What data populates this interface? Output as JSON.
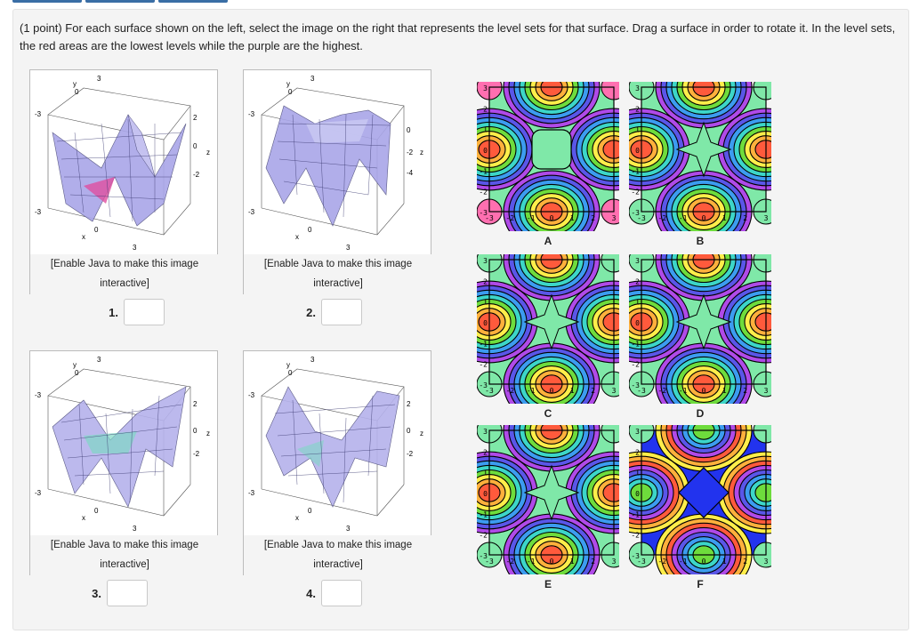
{
  "question": {
    "text": "(1 point) For each surface shown on the left, select the image on the right that represents the level sets for that surface. Drag a surface in order to rotate it. In the level sets, the red areas are the lowest levels while the purple are the highest."
  },
  "surfaces": [
    {
      "caption_line1": "[Enable Java to make this image",
      "caption_line2": "interactive]",
      "number": "1.",
      "value": ""
    },
    {
      "caption_line1": "[Enable Java to make this image",
      "caption_line2": "interactive]",
      "number": "2.",
      "value": ""
    },
    {
      "caption_line1": "[Enable Java to make this image",
      "caption_line2": "interactive]",
      "number": "3.",
      "value": ""
    },
    {
      "caption_line1": "[Enable Java to make this image",
      "caption_line2": "interactive]",
      "number": "4.",
      "value": ""
    }
  ],
  "surface_axes": [
    {
      "y_label": "y",
      "y0": "0",
      "top3": "3",
      "left_neg3": "-3",
      "z_ticks": [
        "2",
        "0",
        "-2"
      ],
      "z_label": "z",
      "bottom_neg3": "-3",
      "x0": "0",
      "x_label": "x",
      "x3": "3"
    },
    {
      "y_label": "y",
      "y0": "0",
      "top3": "3",
      "left_neg3": "-3",
      "z_ticks": [
        "0",
        "-2",
        "-4"
      ],
      "z_label": "z",
      "bottom_neg3": "-3",
      "x0": "0",
      "x_label": "x",
      "x3": "3"
    },
    {
      "y_label": "y",
      "y0": "0",
      "top3": "3",
      "left_neg3": "-3",
      "z_ticks": [
        "2",
        "0",
        "-2"
      ],
      "z_label": "z",
      "bottom_neg3": "-3",
      "x0": "0",
      "x_label": "x",
      "x3": "3"
    },
    {
      "y_label": "y",
      "y0": "0",
      "top3": "3",
      "left_neg3": "-3",
      "z_ticks": [
        "2",
        "0",
        "-2"
      ],
      "z_label": "z",
      "bottom_neg3": "-3",
      "x0": "0",
      "x_label": "x",
      "x3": "3"
    }
  ],
  "level_sets": [
    {
      "label": "A",
      "center_color": "#7fe8a8"
    },
    {
      "label": "B",
      "center_color": "#7fe8a8"
    },
    {
      "label": "C",
      "center_color": "#7fe8a8"
    },
    {
      "label": "D",
      "center_color": "#7fe8a8"
    },
    {
      "label": "E",
      "center_color": "#7fe8a8"
    },
    {
      "label": "F",
      "center_color": "#2233ee"
    }
  ],
  "plot_ticks": {
    "y": [
      "3",
      "2",
      "1",
      "0",
      "-1",
      "-2",
      "-3"
    ],
    "x": [
      "-3",
      "-2",
      "-1",
      "0",
      "1",
      "2",
      "3"
    ]
  }
}
